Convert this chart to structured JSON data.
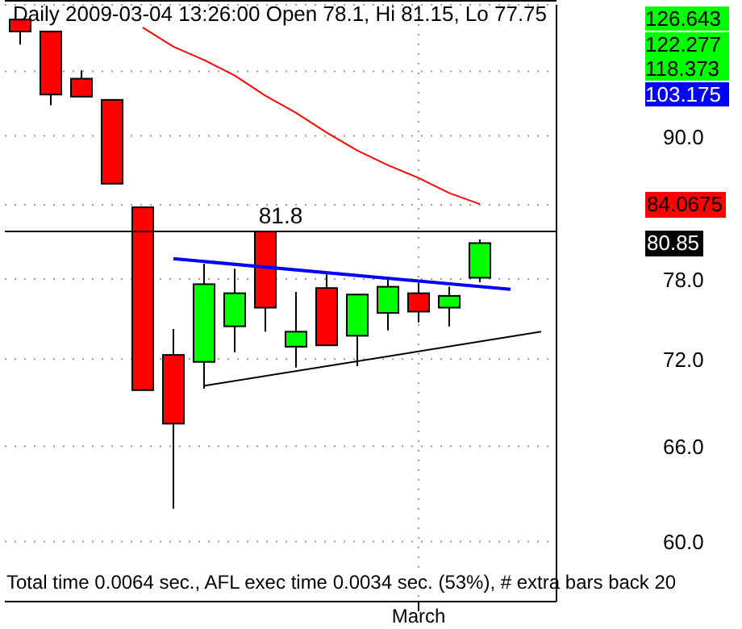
{
  "chart_data": {
    "type": "candlestick",
    "title": "Daily 2009-03-04 13:26:00 Open 78.1, Hi 81.15, Lo 77.75",
    "categories": [
      null,
      null,
      null,
      null,
      null,
      null,
      null,
      null,
      null,
      null,
      null,
      null,
      null,
      "March",
      null,
      null,
      null,
      null
    ],
    "series": [
      {
        "ohlc": [
          [
            101.1,
            101.2,
            98.6,
            99.9
          ],
          [
            99.9,
            99.9,
            92.8,
            93.8
          ],
          [
            95.3,
            96.1,
            93.6,
            93.6
          ],
          [
            93.3,
            93.3,
            85.8,
            85.8
          ],
          [
            83.8,
            83.8,
            69.8,
            69.8
          ],
          [
            72.3,
            74.2,
            62.0,
            67.5
          ],
          [
            71.8,
            79.2,
            69.9,
            77.6
          ],
          [
            74.4,
            78.8,
            72.5,
            76.9
          ],
          [
            81.8,
            81.8,
            74.0,
            75.8
          ],
          [
            72.9,
            77.0,
            71.4,
            74.0
          ],
          [
            77.3,
            78.4,
            73.0,
            73.0
          ],
          [
            73.7,
            76.8,
            71.5,
            76.8
          ],
          [
            75.4,
            78.1,
            74.1,
            77.4
          ],
          [
            76.9,
            77.7,
            74.7,
            75.5
          ],
          [
            75.8,
            77.4,
            74.4,
            76.7
          ],
          [
            78.1,
            81.15,
            77.75,
            80.85
          ],
          null,
          null
        ],
        "colors": [
          "#ff0000",
          "#ff0000",
          "#ff0000",
          "#ff0000",
          "#ff0000",
          "#ff0000",
          "#00ff00",
          "#00ff00",
          "#ff0000",
          "#00ff00",
          "#ff0000",
          "#00ff00",
          "#00ff00",
          "#ff0000",
          "#00ff00",
          "#00ff00",
          null,
          null
        ]
      },
      {
        "type": "line",
        "color": "#ff0000",
        "values": [
          null,
          null,
          null,
          null,
          100.3,
          98.4,
          97.1,
          95.6,
          93.7,
          92.1,
          90.3,
          88.7,
          87.4,
          86.3,
          85.0,
          84.0675,
          null,
          null
        ]
      },
      {
        "type": "line",
        "color": "#0000ff",
        "values": [
          null,
          null,
          null,
          null,
          null,
          79.6,
          null,
          null,
          null,
          null,
          null,
          null,
          null,
          null,
          null,
          null,
          77.2,
          null
        ]
      },
      {
        "type": "line",
        "color": "#000000",
        "values": [
          null,
          null,
          null,
          null,
          null,
          null,
          70.1,
          null,
          null,
          null,
          null,
          null,
          null,
          null,
          null,
          null,
          null,
          74.0
        ]
      }
    ],
    "ylim": [
      56.5,
      102.6
    ],
    "yticks": [
      {
        "value": 60,
        "label": "60.0"
      },
      {
        "value": 66,
        "label": "66.0"
      },
      {
        "value": 72,
        "label": "72.0"
      },
      {
        "value": 78,
        "label": "78.0"
      },
      {
        "value": 84,
        "label": null
      },
      {
        "value": 90,
        "label": "90.0"
      },
      {
        "value": 96,
        "label": null
      }
    ],
    "log": true,
    "grid": true,
    "ref_lines": [
      {
        "axis": "y",
        "value": 81.8,
        "label": "81.8",
        "color": "#000000"
      }
    ],
    "annotations": [
      "126.643",
      "122.277",
      "118.373",
      "103.175",
      "84.0675",
      "80.85",
      "Total time 0.0064 sec., AFL exec time 0.0034 sec. (53%), # extra bars back 20"
    ]
  }
}
